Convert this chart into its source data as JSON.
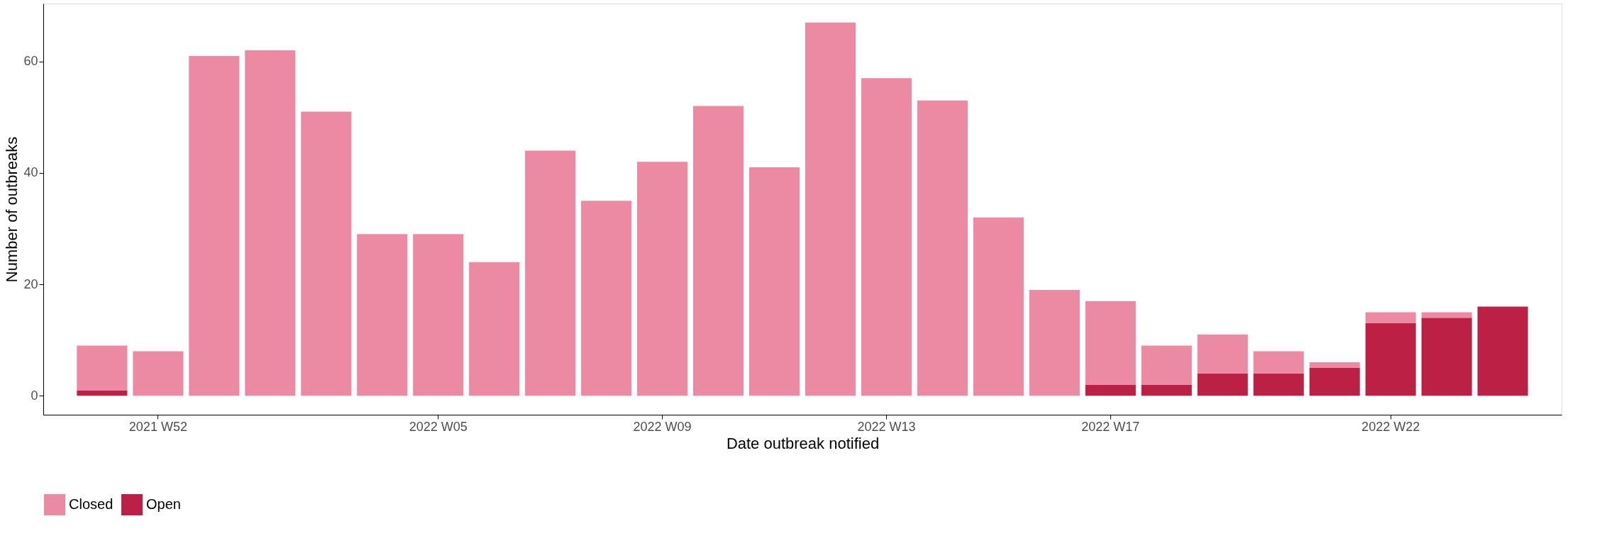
{
  "chart_data": {
    "type": "bar",
    "stacked": true,
    "xlabel": "Date outbreak notified",
    "ylabel": "Number of outbreaks",
    "categories": [
      null,
      "2021 W52",
      null,
      null,
      null,
      null,
      "2022 W05",
      null,
      null,
      null,
      "2022 W09",
      null,
      null,
      null,
      "2022 W13",
      null,
      null,
      null,
      "2022 W17",
      null,
      null,
      null,
      null,
      "2022 W22",
      null,
      null
    ],
    "series": [
      {
        "name": "Open",
        "color": "#bc2045",
        "values": [
          1,
          0,
          0,
          0,
          0,
          0,
          0,
          0,
          0,
          0,
          0,
          0,
          0,
          0,
          0,
          0,
          0,
          0,
          2,
          2,
          4,
          4,
          5,
          13,
          14,
          16
        ]
      },
      {
        "name": "Closed",
        "color": "#eb8aa2",
        "values": [
          8,
          8,
          61,
          62,
          51,
          29,
          29,
          24,
          44,
          35,
          42,
          52,
          41,
          67,
          57,
          53,
          32,
          19,
          15,
          7,
          7,
          4,
          1,
          2,
          1,
          0
        ]
      }
    ],
    "ylim": [
      -3.4,
      70.4
    ],
    "yticks": [
      0,
      20,
      40,
      60
    ],
    "grid": false,
    "legend": "bottom"
  }
}
